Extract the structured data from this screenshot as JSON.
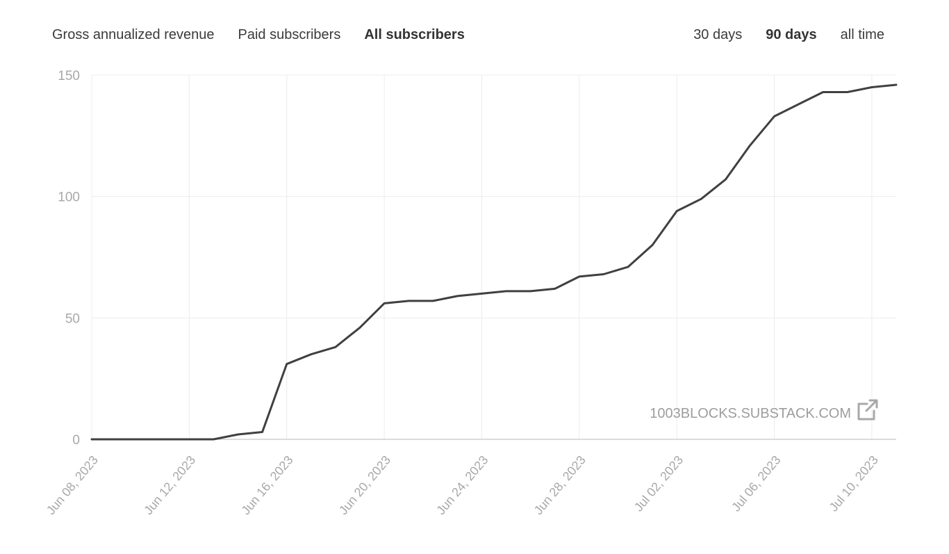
{
  "tabs_metric": [
    {
      "label": "Gross annualized revenue",
      "active": false
    },
    {
      "label": "Paid subscribers",
      "active": false
    },
    {
      "label": "All subscribers",
      "active": true
    }
  ],
  "tabs_range": [
    {
      "label": "30 days",
      "active": false
    },
    {
      "label": "90 days",
      "active": true
    },
    {
      "label": "all time",
      "active": false
    }
  ],
  "watermark": {
    "text": "1003BLOCKS.SUBSTACK.COM",
    "icon": "external-link-icon"
  },
  "colors": {
    "line": "#404040",
    "grid": "#ececec",
    "axis": "#cfcfcf",
    "tick_text": "#a8a8a8",
    "watermark": "#9d9d9d"
  },
  "chart_data": {
    "type": "line",
    "title": "",
    "xlabel": "",
    "ylabel": "",
    "ylim": [
      0,
      150
    ],
    "xlim": [
      "2023-06-08",
      "2023-07-11"
    ],
    "yticks": [
      0,
      50,
      100,
      150
    ],
    "xtick_labels": [
      "Jun 08, 2023",
      "Jun 12, 2023",
      "Jun 16, 2023",
      "Jun 20, 2023",
      "Jun 24, 2023",
      "Jun 28, 2023",
      "Jul 02, 2023",
      "Jul 06, 2023",
      "Jul 10, 2023"
    ],
    "xtick_dates": [
      "2023-06-08",
      "2023-06-12",
      "2023-06-16",
      "2023-06-20",
      "2023-06-24",
      "2023-06-28",
      "2023-07-02",
      "2023-07-06",
      "2023-07-10"
    ],
    "grid": true,
    "legend": "none",
    "series": [
      {
        "x": [
          "2023-06-08",
          "2023-06-09",
          "2023-06-10",
          "2023-06-11",
          "2023-06-12",
          "2023-06-13",
          "2023-06-14",
          "2023-06-15",
          "2023-06-16",
          "2023-06-17",
          "2023-06-18",
          "2023-06-19",
          "2023-06-20",
          "2023-06-21",
          "2023-06-22",
          "2023-06-23",
          "2023-06-24",
          "2023-06-25",
          "2023-06-26",
          "2023-06-27",
          "2023-06-28",
          "2023-06-29",
          "2023-06-30",
          "2023-07-01",
          "2023-07-02",
          "2023-07-03",
          "2023-07-04",
          "2023-07-05",
          "2023-07-06",
          "2023-07-07",
          "2023-07-08",
          "2023-07-09",
          "2023-07-10",
          "2023-07-11"
        ],
        "values": [
          0,
          0,
          0,
          0,
          0,
          0,
          2,
          3,
          31,
          35,
          38,
          46,
          56,
          57,
          57,
          59,
          60,
          61,
          61,
          62,
          67,
          68,
          71,
          80,
          94,
          99,
          107,
          121,
          133,
          138,
          143,
          143,
          145,
          146
        ]
      }
    ]
  }
}
